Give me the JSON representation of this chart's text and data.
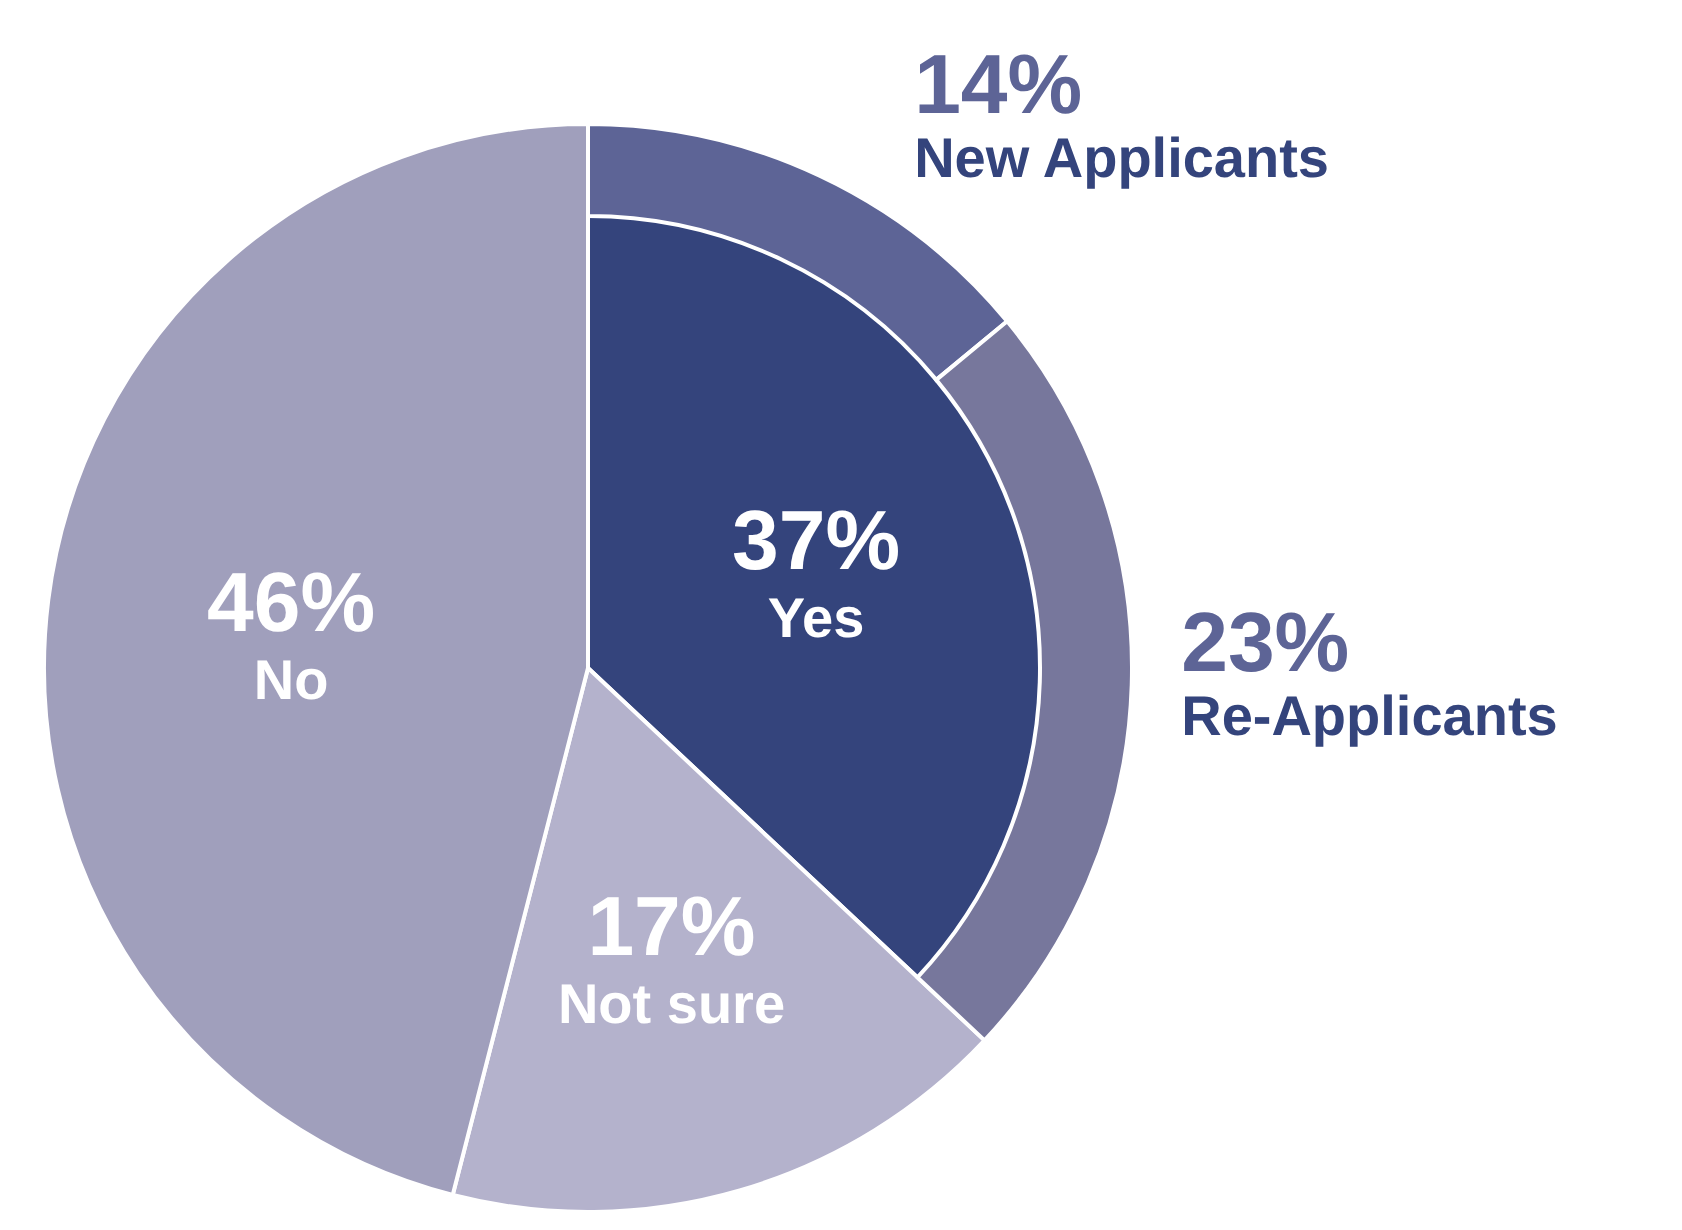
{
  "chart_data": [
    {
      "type": "pie",
      "categories": [
        "Yes",
        "Not sure",
        "No"
      ],
      "values": [
        37,
        17,
        46
      ],
      "colors": [
        "#34447c",
        "#b4b2cc",
        "#a09fbc"
      ],
      "value_labels": [
        "37%",
        "17%",
        "46%"
      ]
    },
    {
      "type": "donut",
      "categories": [
        "New Applicants",
        "Re-Applicants"
      ],
      "values": [
        14,
        23
      ],
      "colors": [
        "#5d6496",
        "#77779c"
      ],
      "value_labels": [
        "14%",
        "23%"
      ]
    }
  ]
}
